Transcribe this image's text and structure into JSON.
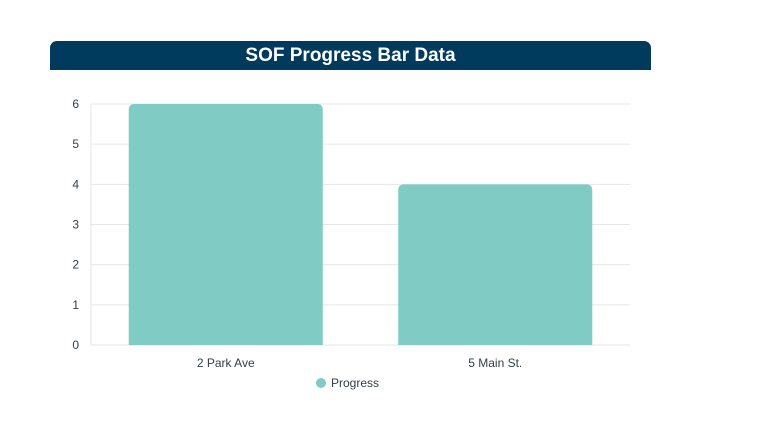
{
  "header": {
    "title": "SOF Progress Bar Data"
  },
  "colors": {
    "header_bg": "#003a5d",
    "bar": "#81cbc5",
    "grid": "#e6e6e6",
    "text": "#333e48"
  },
  "chart_data": {
    "type": "bar",
    "title": "SOF Progress Bar Data",
    "categories": [
      "2 Park Ave",
      "5 Main St."
    ],
    "series": [
      {
        "name": "Progress",
        "values": [
          6,
          4
        ]
      }
    ],
    "xlabel": "",
    "ylabel": "",
    "ylim": [
      0,
      6
    ],
    "yticks": [
      "0",
      "1",
      "2",
      "3",
      "4",
      "5",
      "6"
    ],
    "grid": true,
    "legend": "bottom-center"
  }
}
